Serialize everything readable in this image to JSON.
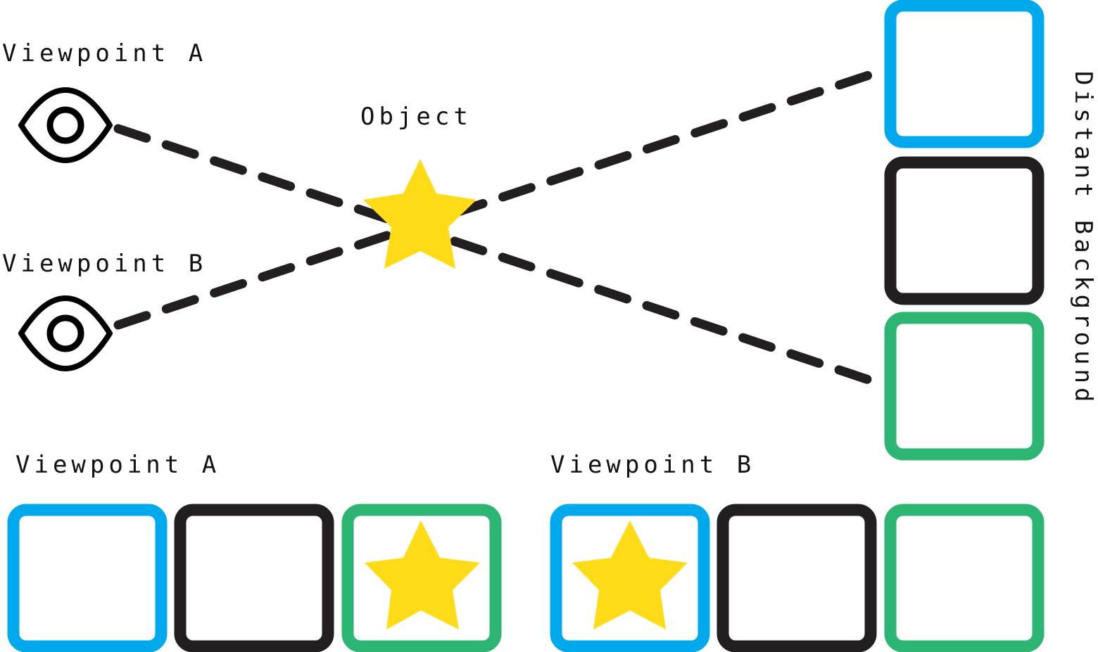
{
  "labels": {
    "viewpoint_a": "Viewpoint A",
    "viewpoint_b": "Viewpoint B",
    "object": "Object",
    "distant_background": "Distant Background",
    "view_a_caption": "Viewpoint A",
    "view_b_caption": "Viewpoint B"
  },
  "colors": {
    "blue": "#00A8EC",
    "black": "#231F20",
    "green": "#2DB673",
    "star": "#FFDC17",
    "line": "#231F20"
  },
  "icons": {
    "viewpoint": "eye-icon",
    "object": "star-icon"
  }
}
